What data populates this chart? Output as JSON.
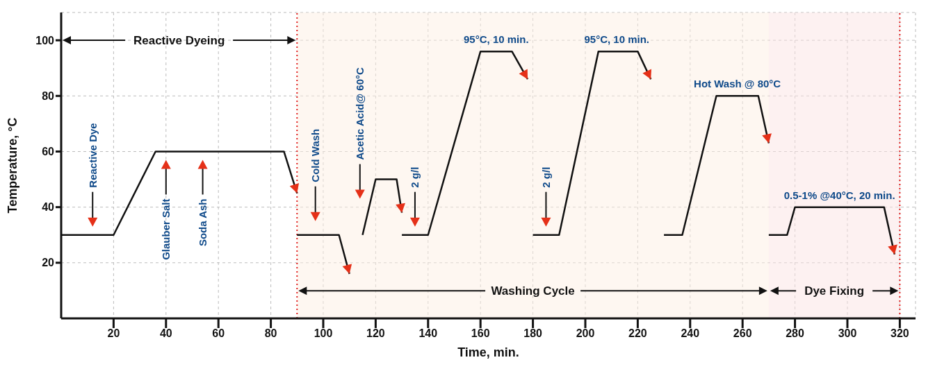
{
  "chart_data": {
    "type": "line",
    "xlabel": "Time, min.",
    "ylabel": "Temperature, °C",
    "xlim": [
      0,
      326
    ],
    "ylim": [
      0,
      110
    ],
    "xticks": [
      20,
      40,
      60,
      80,
      100,
      120,
      140,
      160,
      180,
      200,
      220,
      240,
      260,
      280,
      300,
      320
    ],
    "yticks": [
      20,
      40,
      60,
      80,
      100
    ],
    "grid": true,
    "marker": "none",
    "line_style": "solid",
    "series": [
      {
        "color": "#111111",
        "x": [
          0,
          20,
          36,
          85,
          90
        ],
        "values": [
          30,
          30,
          60,
          60,
          45
        ]
      },
      {
        "color": "#111111",
        "x": [
          90,
          106,
          110
        ],
        "values": [
          30,
          30,
          16
        ]
      },
      {
        "color": "#111111",
        "x": [
          115,
          120,
          128,
          130
        ],
        "values": [
          30,
          50,
          50,
          38
        ]
      },
      {
        "color": "#111111",
        "x": [
          130,
          140,
          160,
          172,
          178
        ],
        "values": [
          30,
          30,
          96,
          96,
          86
        ]
      },
      {
        "color": "#111111",
        "x": [
          180,
          190,
          205,
          220,
          225
        ],
        "values": [
          30,
          30,
          96,
          96,
          86
        ]
      },
      {
        "color": "#111111",
        "x": [
          230,
          237,
          250,
          266,
          270
        ],
        "values": [
          30,
          30,
          80,
          80,
          63
        ]
      },
      {
        "color": "#111111",
        "x": [
          270,
          277,
          280,
          314,
          318
        ],
        "values": [
          30,
          30,
          40,
          40,
          23
        ]
      }
    ],
    "ref_lines": [
      {
        "axis": "x",
        "value": 90,
        "color": "#e02020",
        "line_style": "dotted"
      },
      {
        "axis": "x",
        "value": 320,
        "color": "#e02020",
        "line_style": "dotted"
      }
    ],
    "bands": [
      {
        "axis": "x",
        "from": 90,
        "to": 270,
        "label": "Washing Cycle",
        "color": "#fdf0e4"
      },
      {
        "axis": "x",
        "from": 270,
        "to": 320,
        "label": "Dye Fixing",
        "color": "#fbe4e4"
      }
    ],
    "annotations": [
      "Reactive Dyeing",
      "Reactive Dye",
      "Glauber Salt",
      "Soda Ash",
      "Cold Wash",
      "Acetic Acid@ 60°C",
      "2 g/l",
      {
        "text": "95°C, 10 min.",
        "x": 166,
        "y": 96
      },
      "2 g/l",
      {
        "text": "95°C, 10 min.",
        "x": 212,
        "y": 96
      },
      {
        "text": "Hot Wash @ 80°C",
        "x": 258,
        "y": 80
      },
      {
        "text": "0.5-1% @40°C, 20 min.",
        "x": 297,
        "y": 40
      }
    ]
  }
}
